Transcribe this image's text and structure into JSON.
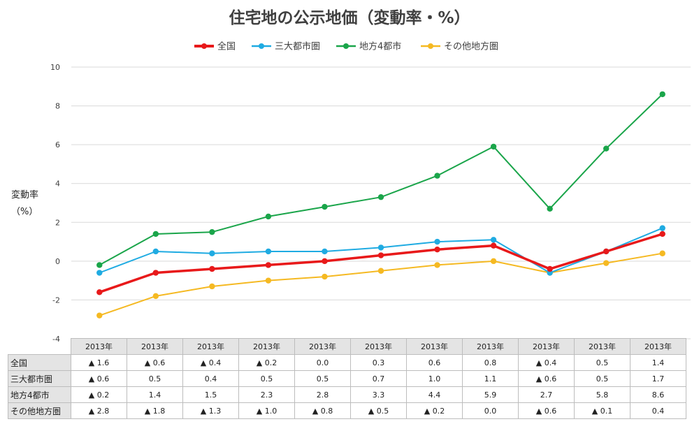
{
  "chart_data": {
    "type": "line",
    "title": "住宅地の公示地価（変動率・%）",
    "ylabel_lines": [
      "変動率",
      "（%）"
    ],
    "ylim": [
      -4,
      10
    ],
    "yticks": [
      -4,
      -2,
      0,
      2,
      4,
      6,
      8,
      10
    ],
    "grid": true,
    "legend_position": "top",
    "categories": [
      "2013年",
      "2013年",
      "2013年",
      "2013年",
      "2013年",
      "2013年",
      "2013年",
      "2013年",
      "2013年",
      "2013年",
      "2013年"
    ],
    "series": [
      {
        "name": "全国",
        "color": "#e8191a",
        "values": [
          -1.6,
          -0.6,
          -0.4,
          -0.2,
          0.0,
          0.3,
          0.6,
          0.8,
          -0.4,
          0.5,
          1.4
        ],
        "labels": [
          "▲ 1.6",
          "▲ 0.6",
          "▲ 0.4",
          "▲ 0.2",
          "0.0",
          "0.3",
          "0.6",
          "0.8",
          "▲ 0.4",
          "0.5",
          "1.4"
        ]
      },
      {
        "name": "三大都市圏",
        "color": "#1fabe2",
        "values": [
          -0.6,
          0.5,
          0.4,
          0.5,
          0.5,
          0.7,
          1.0,
          1.1,
          -0.6,
          0.5,
          1.7
        ],
        "labels": [
          "▲ 0.6",
          "0.5",
          "0.4",
          "0.5",
          "0.5",
          "0.7",
          "1.0",
          "1.1",
          "▲ 0.6",
          "0.5",
          "1.7"
        ]
      },
      {
        "name": "地方4都市",
        "color": "#1aa54a",
        "values": [
          -0.2,
          1.4,
          1.5,
          2.3,
          2.8,
          3.3,
          4.4,
          5.9,
          2.7,
          5.8,
          8.6
        ],
        "labels": [
          "▲ 0.2",
          "1.4",
          "1.5",
          "2.3",
          "2.8",
          "3.3",
          "4.4",
          "5.9",
          "2.7",
          "5.8",
          "8.6"
        ]
      },
      {
        "name": "その他地方圏",
        "color": "#f5b922",
        "values": [
          -2.8,
          -1.8,
          -1.3,
          -1.0,
          -0.8,
          -0.5,
          -0.2,
          0.0,
          -0.6,
          -0.1,
          0.4
        ],
        "labels": [
          "▲ 2.8",
          "▲ 1.8",
          "▲ 1.3",
          "▲ 1.0",
          "▲ 0.8",
          "▲ 0.5",
          "▲ 0.2",
          "0.0",
          "▲ 0.6",
          "▲ 0.1",
          "0.4"
        ]
      }
    ]
  }
}
